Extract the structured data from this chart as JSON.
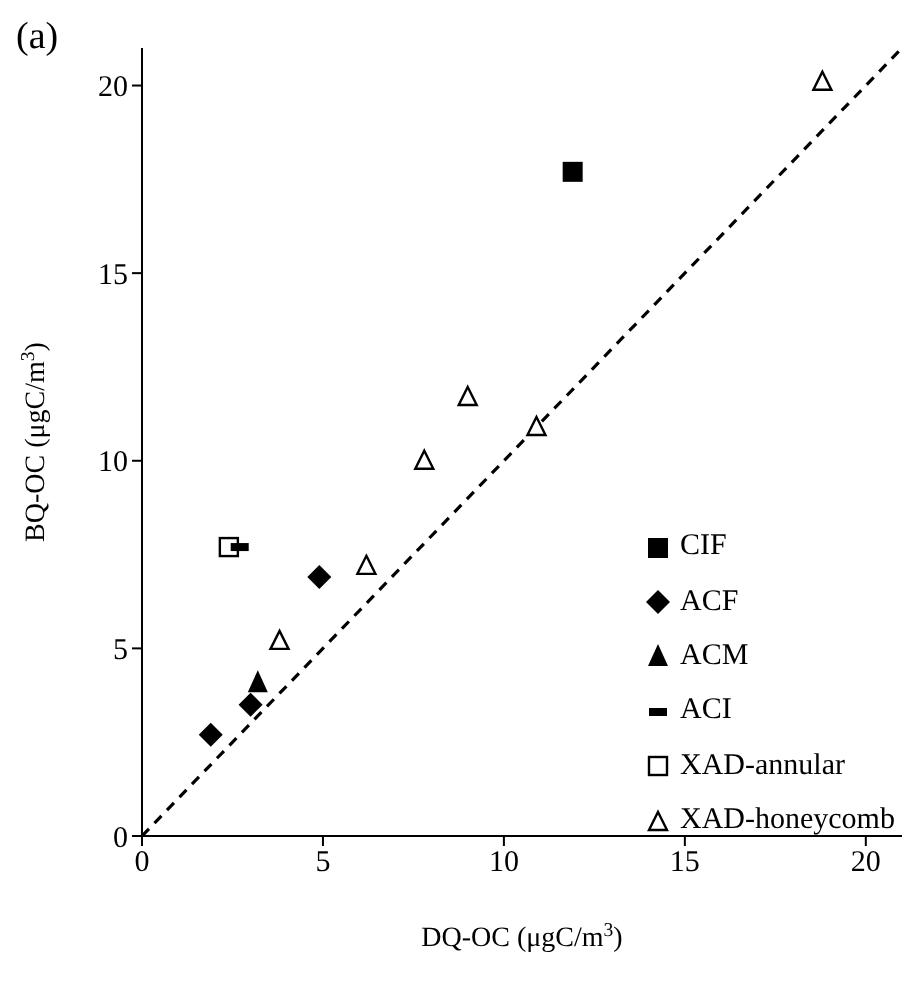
{
  "chart_data": {
    "type": "scatter",
    "title": "(a)",
    "xlabel": "DQ-OC (μgC/m$^{3}$)",
    "ylabel": "BQ-OC (μgC/m$^{3}$)",
    "xlim": [
      0,
      21
    ],
    "ylim": [
      0,
      21
    ],
    "xticks": [
      0,
      5,
      10,
      15,
      20
    ],
    "yticks": [
      0,
      5,
      10,
      15,
      20
    ],
    "legend": "bottom right",
    "series": [
      {
        "name": "CIF",
        "color": "#000000",
        "marker": "square",
        "x": [
          11.9
        ],
        "values": [
          17.7
        ]
      },
      {
        "name": "ACF",
        "color": "#000000",
        "marker": "diamond",
        "x": [
          1.9,
          3.0,
          4.9
        ],
        "values": [
          2.7,
          3.5,
          6.9
        ]
      },
      {
        "name": "ACM",
        "color": "#000000",
        "marker": "triangle",
        "x": [
          3.2
        ],
        "values": [
          4.1
        ]
      },
      {
        "name": "ACI",
        "color": "#000000",
        "x": [
          2.7
        ],
        "values": [
          7.7
        ]
      },
      {
        "name": "XAD-annular",
        "color": "#000000",
        "marker": "square-open",
        "x": [
          2.4
        ],
        "values": [
          7.7
        ]
      },
      {
        "name": "XAD-honeycomb",
        "color": "#000000",
        "marker": "triangle-open",
        "x": [
          3.8,
          6.2,
          7.8,
          9.0,
          10.9,
          18.8
        ],
        "values": [
          5.2,
          7.2,
          10.0,
          11.7,
          10.9,
          20.1
        ]
      },
      {
        "type": "line",
        "color": "#000000",
        "marker": "none",
        "line_style": "dashed",
        "x": [
          0,
          21
        ],
        "values": [
          0,
          21
        ]
      }
    ]
  }
}
